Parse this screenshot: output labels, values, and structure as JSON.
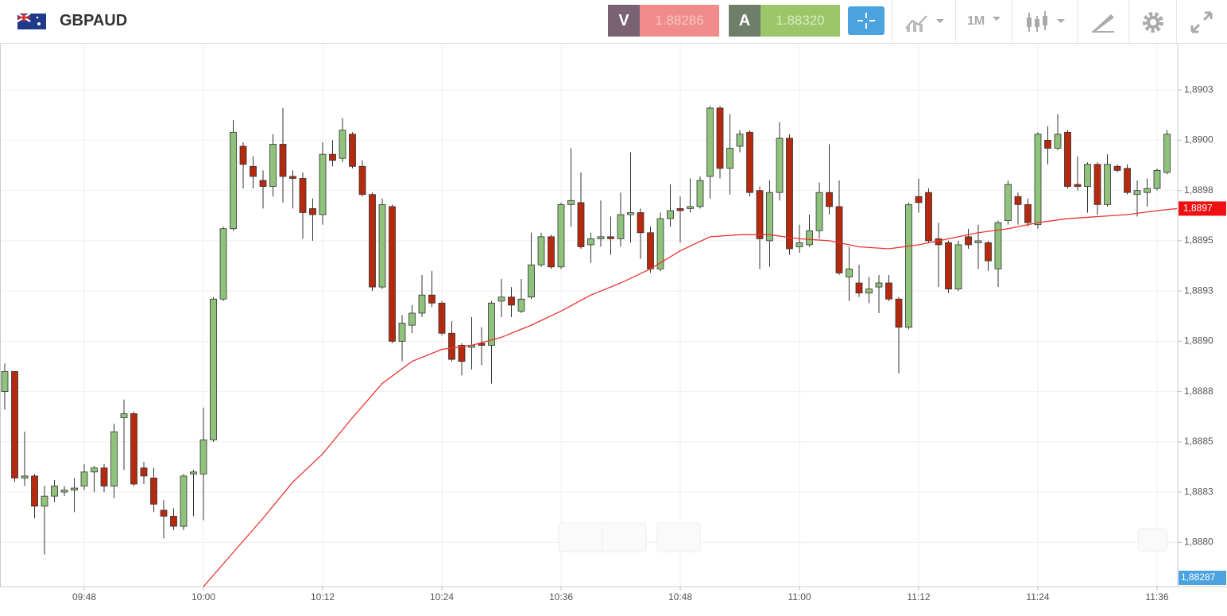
{
  "header": {
    "symbol": "GBPAUD",
    "sell": {
      "label": "V",
      "price": "1.88286"
    },
    "buy": {
      "label": "A",
      "price": "1.88320"
    },
    "timeframe": "1M"
  },
  "chart_data": {
    "type": "candlestick",
    "x": [
      580,
      581,
      582,
      583,
      584,
      585,
      586,
      587,
      588,
      589,
      590,
      591,
      592,
      593,
      594,
      595,
      596,
      597,
      598,
      599,
      600,
      601,
      602,
      603,
      604,
      605,
      606,
      607,
      608,
      609,
      610,
      611,
      612,
      613,
      614,
      615,
      616,
      617,
      618,
      619,
      620,
      621,
      622,
      623,
      624,
      625,
      626,
      627,
      628,
      629,
      630,
      631,
      632,
      633,
      634,
      635,
      636,
      637,
      638,
      639,
      640,
      641,
      642,
      643,
      644,
      645,
      646,
      647,
      648,
      649,
      650,
      651,
      652,
      653,
      654,
      655,
      656,
      657,
      658,
      659,
      660,
      661,
      662,
      663,
      664,
      665,
      666,
      667,
      668,
      669,
      670,
      671,
      672,
      673,
      674,
      675,
      676,
      677,
      678,
      679,
      680,
      681,
      682,
      683,
      684,
      685,
      686,
      687,
      688,
      689,
      690,
      691,
      692,
      693,
      694,
      695,
      696,
      697
    ],
    "open": [
      1.88875,
      1.88885,
      1.88832,
      1.88833,
      1.88818,
      1.88823,
      1.88825,
      1.88826,
      1.88828,
      1.88835,
      1.88837,
      1.88828,
      1.88862,
      1.88864,
      1.88837,
      1.88832,
      1.88816,
      1.88813,
      1.88808,
      1.88834,
      1.88834,
      1.88851,
      1.88921,
      1.88956,
      1.88997,
      1.88987,
      1.8898,
      1.88977,
      1.88998,
      1.88982,
      1.88981,
      1.88966,
      1.88963,
      1.88993,
      1.88991,
      1.89003,
      1.88987,
      1.88973,
      1.88927,
      1.88967,
      1.889,
      1.88908,
      1.88914,
      1.88923,
      1.88919,
      1.88904,
      1.88898,
      1.88897,
      1.88899,
      1.88898,
      1.8892,
      1.88922,
      1.88915,
      1.88922,
      1.88938,
      1.88952,
      1.88937,
      1.88968,
      1.88969,
      1.88948,
      1.88951,
      1.88952,
      1.88951,
      1.88963,
      1.88964,
      1.88954,
      1.88936,
      1.88961,
      1.88966,
      1.88966,
      1.88967,
      1.88982,
      1.89016,
      1.88986,
      1.88997,
      1.89004,
      1.88975,
      1.8895,
      1.88974,
      1.89001,
      1.88947,
      1.88948,
      1.88955,
      1.88974,
      1.88967,
      1.88932,
      1.88929,
      1.88924,
      1.88927,
      1.88929,
      1.88921,
      1.88907,
      1.88972,
      1.88974,
      1.88951,
      1.88949,
      1.88926,
      1.88952,
      1.88949,
      1.88949,
      1.88936,
      1.8896,
      1.88972,
      1.88968,
      1.88958,
      1.89,
      1.88996,
      1.89004,
      1.88978,
      1.88977,
      1.88988,
      1.88968,
      1.88987,
      1.88986,
      1.88973,
      1.88974,
      1.88976,
      1.88984
    ],
    "high": [
      1.88889,
      1.88885,
      1.88855,
      1.88834,
      1.88828,
      1.88831,
      1.88828,
      1.88832,
      1.88839,
      1.88838,
      1.88839,
      1.88859,
      1.88871,
      1.88865,
      1.8884,
      1.88837,
      1.88821,
      1.88817,
      1.88834,
      1.88836,
      1.88867,
      1.88922,
      1.88957,
      1.8901,
      1.88999,
      1.88992,
      1.88985,
      1.89003,
      1.89016,
      1.88985,
      1.88984,
      1.88971,
      1.88999,
      1.89,
      1.89011,
      1.89004,
      1.8899,
      1.88974,
      1.88971,
      1.88968,
      1.88913,
      1.88918,
      1.88933,
      1.88935,
      1.8892,
      1.8891,
      1.88899,
      1.88912,
      1.88907,
      1.8892,
      1.88931,
      1.88927,
      1.88931,
      1.88954,
      1.88954,
      1.88953,
      1.88969,
      1.88996,
      1.88984,
      1.88954,
      1.8897,
      1.88962,
      1.88974,
      1.88994,
      1.88966,
      1.88957,
      1.88964,
      1.88978,
      1.88972,
      1.88981,
      1.88982,
      1.89017,
      1.89017,
      1.89013,
      1.89005,
      1.89005,
      1.88977,
      1.8898,
      1.89009,
      1.89003,
      1.88958,
      1.88963,
      1.88979,
      1.88998,
      1.8898,
      1.88947,
      1.88938,
      1.88932,
      1.88933,
      1.88933,
      1.88922,
      1.88969,
      1.88981,
      1.88976,
      1.88959,
      1.8895,
      1.8895,
      1.88956,
      1.88958,
      1.8895,
      1.8896,
      1.8898,
      1.88974,
      1.88971,
      1.89004,
      1.89007,
      1.89013,
      1.89005,
      1.88992,
      1.88989,
      1.88989,
      1.88993,
      1.88988,
      1.88988,
      1.8898,
      1.88981,
      1.88986,
      1.89005
    ],
    "low": [
      1.88866,
      1.8883,
      1.88828,
      1.88812,
      1.88794,
      1.8882,
      1.88823,
      1.88815,
      1.88826,
      1.88825,
      1.88825,
      1.88822,
      1.88836,
      1.88828,
      1.88829,
      1.88815,
      1.88802,
      1.88806,
      1.88806,
      1.88813,
      1.88811,
      1.8885,
      1.8892,
      1.88955,
      1.88976,
      1.88976,
      1.88966,
      1.88972,
      1.88969,
      1.88966,
      1.88951,
      1.8895,
      1.88958,
      1.88987,
      1.88989,
      1.88986,
      1.88972,
      1.88925,
      1.88926,
      1.88899,
      1.8889,
      1.88904,
      1.88912,
      1.88917,
      1.88903,
      1.8889,
      1.88883,
      1.88886,
      1.88888,
      1.88879,
      1.88912,
      1.88912,
      1.88914,
      1.88921,
      1.88937,
      1.88936,
      1.88936,
      1.88957,
      1.88946,
      1.88939,
      1.88947,
      1.88943,
      1.88947,
      1.88949,
      1.88941,
      1.88934,
      1.88935,
      1.88957,
      1.88949,
      1.88964,
      1.88966,
      1.88971,
      1.88981,
      1.88973,
      1.88994,
      1.88972,
      1.88936,
      1.88937,
      1.8897,
      1.88943,
      1.88944,
      1.88947,
      1.88951,
      1.88963,
      1.88933,
      1.8892,
      1.88922,
      1.88919,
      1.88914,
      1.8892,
      1.88884,
      1.88906,
      1.88964,
      1.88949,
      1.88927,
      1.88924,
      1.88925,
      1.88946,
      1.88936,
      1.88935,
      1.88927,
      1.88958,
      1.88958,
      1.88957,
      1.88956,
      1.88988,
      1.88995,
      1.88976,
      1.88975,
      1.88964,
      1.88963,
      1.88967,
      1.88984,
      1.88973,
      1.88962,
      1.88967,
      1.88975,
      1.88983
    ],
    "close": [
      1.88885,
      1.88832,
      1.88833,
      1.88818,
      1.88823,
      1.88828,
      1.88826,
      1.88827,
      1.88835,
      1.88837,
      1.88828,
      1.88855,
      1.88864,
      1.88829,
      1.88833,
      1.88819,
      1.88813,
      1.88808,
      1.88833,
      1.88835,
      1.88851,
      1.88921,
      1.88956,
      1.89004,
      1.88988,
      1.88982,
      1.88977,
      1.88998,
      1.88982,
      1.88981,
      1.88964,
      1.88963,
      1.88993,
      1.8899,
      1.89005,
      1.88987,
      1.88973,
      1.88927,
      1.88968,
      1.889,
      1.88909,
      1.88914,
      1.88923,
      1.88919,
      1.88904,
      1.88891,
      1.8889,
      1.88898,
      1.88898,
      1.88919,
      1.88922,
      1.88918,
      1.88921,
      1.88938,
      1.88952,
      1.88937,
      1.88968,
      1.8897,
      1.88947,
      1.88951,
      1.88952,
      1.88951,
      1.88963,
      1.88964,
      1.88954,
      1.88936,
      1.88961,
      1.88965,
      1.88965,
      1.88967,
      1.8898,
      1.89016,
      1.88986,
      1.88996,
      1.89003,
      1.88974,
      1.88951,
      1.88974,
      1.89001,
      1.88946,
      1.88949,
      1.88955,
      1.88974,
      1.88967,
      1.88934,
      1.88936,
      1.88924,
      1.88926,
      1.88929,
      1.88921,
      1.88907,
      1.88968,
      1.88969,
      1.8895,
      1.88948,
      1.88926,
      1.88948,
      1.88948,
      1.8895,
      1.8894,
      1.88959,
      1.88978,
      1.88968,
      1.88959,
      1.89003,
      1.88996,
      1.89003,
      1.88977,
      1.88977,
      1.88988,
      1.88968,
      1.88988,
      1.88985,
      1.88974,
      1.88975,
      1.88976,
      1.88985,
      1.89003
    ],
    "up_color": "#8fc27a",
    "down_color": "#b5290f",
    "xlim": [
      579.52,
      698.08
    ],
    "xticks": [
      {
        "value": 588,
        "label": "09:48"
      },
      {
        "value": 600,
        "label": "10:00"
      },
      {
        "value": 612,
        "label": "10:12"
      },
      {
        "value": 624,
        "label": "10:24"
      },
      {
        "value": 636,
        "label": "10:36"
      },
      {
        "value": 648,
        "label": "10:48"
      },
      {
        "value": 660,
        "label": "11:00"
      },
      {
        "value": 672,
        "label": "11:12"
      },
      {
        "value": 684,
        "label": "11:24"
      },
      {
        "value": 696,
        "label": "11:36"
      }
    ],
    "ylim": [
      1.88778,
      1.89048
    ],
    "yticks": [
      {
        "value": 1.888,
        "label": "1,8880"
      },
      {
        "value": 1.88825,
        "label": "1,8883"
      },
      {
        "value": 1.8885,
        "label": "1,8885"
      },
      {
        "value": 1.88875,
        "label": "1,8888"
      },
      {
        "value": 1.889,
        "label": "1,8890"
      },
      {
        "value": 1.88925,
        "label": "1,8893"
      },
      {
        "value": 1.8895,
        "label": "1,8895"
      },
      {
        "value": 1.88975,
        "label": "1,8898"
      },
      {
        "value": 1.89,
        "label": "1,8900"
      },
      {
        "value": 1.89025,
        "label": "1,8903"
      }
    ],
    "grid": true,
    "moving_average": {
      "color": "#e8342f",
      "x": [
        600,
        603,
        606,
        609,
        612,
        615,
        618,
        621,
        624,
        627,
        630,
        633,
        636,
        639,
        642,
        645,
        648,
        651,
        654,
        657,
        660,
        663,
        666,
        669,
        672,
        675,
        678,
        681,
        684,
        687,
        690,
        693,
        696,
        698
      ],
      "values": [
        1.88778,
        1.88795,
        1.88812,
        1.8883,
        1.88844,
        1.88862,
        1.88879,
        1.8889,
        1.88896,
        1.88898,
        1.88902,
        1.88908,
        1.88915,
        1.88923,
        1.88929,
        1.88936,
        1.88945,
        1.88952,
        1.88953,
        1.88953,
        1.88951,
        1.8895,
        1.88947,
        1.88946,
        1.88948,
        1.88951,
        1.88954,
        1.88956,
        1.88959,
        1.88961,
        1.88962,
        1.88963,
        1.88965,
        1.88966
      ],
      "last_label": "1,8897"
    },
    "price_tag": "1,88287"
  }
}
